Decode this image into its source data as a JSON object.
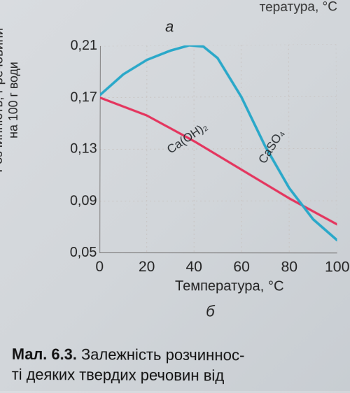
{
  "fragments": {
    "top_right": "тература, °C",
    "panel_a": "а",
    "panel_b": "б"
  },
  "chart": {
    "type": "line",
    "background_color": "transparent",
    "grid_color": "#c8c4c2",
    "axis_color": "#5a5654",
    "axis_width": 1.4,
    "xlim": [
      0,
      100
    ],
    "ylim": [
      0.05,
      0.21
    ],
    "xticks": [
      0,
      20,
      40,
      60,
      80,
      100
    ],
    "yticks": [
      0.05,
      0.09,
      0.13,
      0.17,
      0.21
    ],
    "ytick_labels": [
      "0,05",
      "0,09",
      "0,13",
      "0,17",
      "0,21"
    ],
    "xlabel": "Температура, °C",
    "ylabel_line1": "Розчинність, г речовини",
    "ylabel_line2": "на 100 г води",
    "label_fontsize": 19,
    "tick_fontsize": 20,
    "series": [
      {
        "name": "Ca(OH)2",
        "label": "Ca(OH)₂",
        "color": "#e4355e",
        "width": 3.2,
        "points": [
          {
            "x": 0,
            "y": 0.17
          },
          {
            "x": 20,
            "y": 0.156
          },
          {
            "x": 40,
            "y": 0.136
          },
          {
            "x": 60,
            "y": 0.114
          },
          {
            "x": 80,
            "y": 0.092
          },
          {
            "x": 100,
            "y": 0.072
          }
        ],
        "label_pos": {
          "x": 38,
          "y": 0.136,
          "angle": -34
        }
      },
      {
        "name": "CaSO4",
        "label": "CaSO₄",
        "color": "#2aa8c9",
        "width": 3.6,
        "points": [
          {
            "x": 0,
            "y": 0.172
          },
          {
            "x": 10,
            "y": 0.188
          },
          {
            "x": 20,
            "y": 0.199
          },
          {
            "x": 30,
            "y": 0.206
          },
          {
            "x": 38,
            "y": 0.21
          },
          {
            "x": 44,
            "y": 0.209
          },
          {
            "x": 50,
            "y": 0.2
          },
          {
            "x": 60,
            "y": 0.17
          },
          {
            "x": 70,
            "y": 0.132
          },
          {
            "x": 80,
            "y": 0.1
          },
          {
            "x": 90,
            "y": 0.076
          },
          {
            "x": 100,
            "y": 0.06
          }
        ],
        "label_pos": {
          "x": 74,
          "y": 0.13,
          "angle": -58
        }
      }
    ]
  },
  "caption": {
    "bold": "Мал. 6.3.",
    "rest_line1": " Залежність розчиннос-",
    "rest_line2": "ті деяких твердих речовин від"
  }
}
